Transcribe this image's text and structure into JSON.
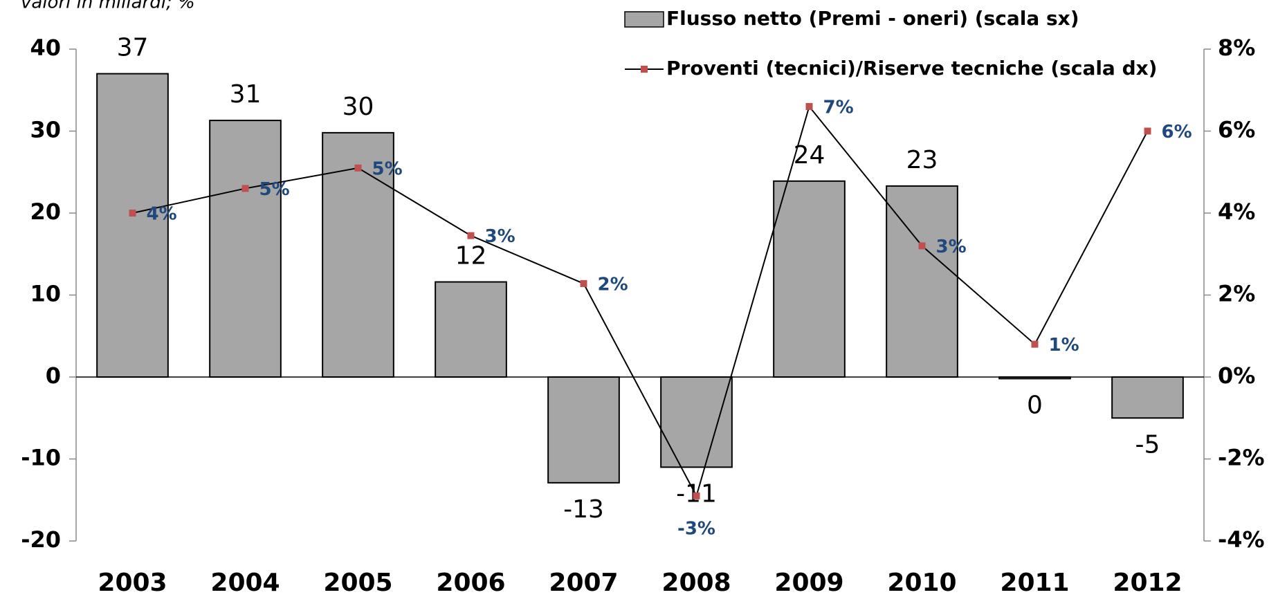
{
  "chart_data": {
    "type": "bar-line",
    "subtitle": "valori in miliardi; %",
    "categories": [
      "2003",
      "2004",
      "2005",
      "2006",
      "2007",
      "2008",
      "2009",
      "2010",
      "2011",
      "2012"
    ],
    "series": [
      {
        "name": "Flusso netto (Premi - oneri) (scala sx)",
        "type": "bar",
        "color": "#a6a6a6",
        "values": [
          37,
          31.3,
          29.8,
          11.6,
          -12.9,
          -11,
          23.9,
          23.3,
          -0.2,
          -5
        ],
        "value_labels": [
          "37",
          "31",
          "30",
          "12",
          "-13",
          "-11",
          "24",
          "23",
          "0",
          "-5"
        ]
      },
      {
        "name": "Proventi (tecnici)/Riserve tecniche (scala dx)",
        "type": "line",
        "axis": "y2",
        "color": "#000000",
        "marker_color": "#c0504d",
        "values": [
          4.0,
          4.6,
          5.1,
          3.45,
          2.28,
          -2.9,
          6.6,
          3.2,
          0.8,
          6.0
        ],
        "value_labels": [
          "4%",
          "5%",
          "5%",
          "3%",
          "2%",
          "-3%",
          "7%",
          "3%",
          "1%",
          "6%"
        ]
      }
    ],
    "ylim": [
      -20,
      40
    ],
    "yticks": [
      -20,
      -10,
      0,
      10,
      20,
      30,
      40
    ],
    "y2lim": [
      -4,
      8
    ],
    "y2ticks": [
      {
        "value": -4,
        "label": "-4%"
      },
      {
        "value": -2,
        "label": "-2%"
      },
      {
        "value": 0,
        "label": "0%"
      },
      {
        "value": 2,
        "label": "2%"
      },
      {
        "value": 4,
        "label": "4%"
      },
      {
        "value": 6,
        "label": "6%"
      },
      {
        "value": 8,
        "label": "8%"
      }
    ],
    "legend": "top-right",
    "grid": false
  }
}
